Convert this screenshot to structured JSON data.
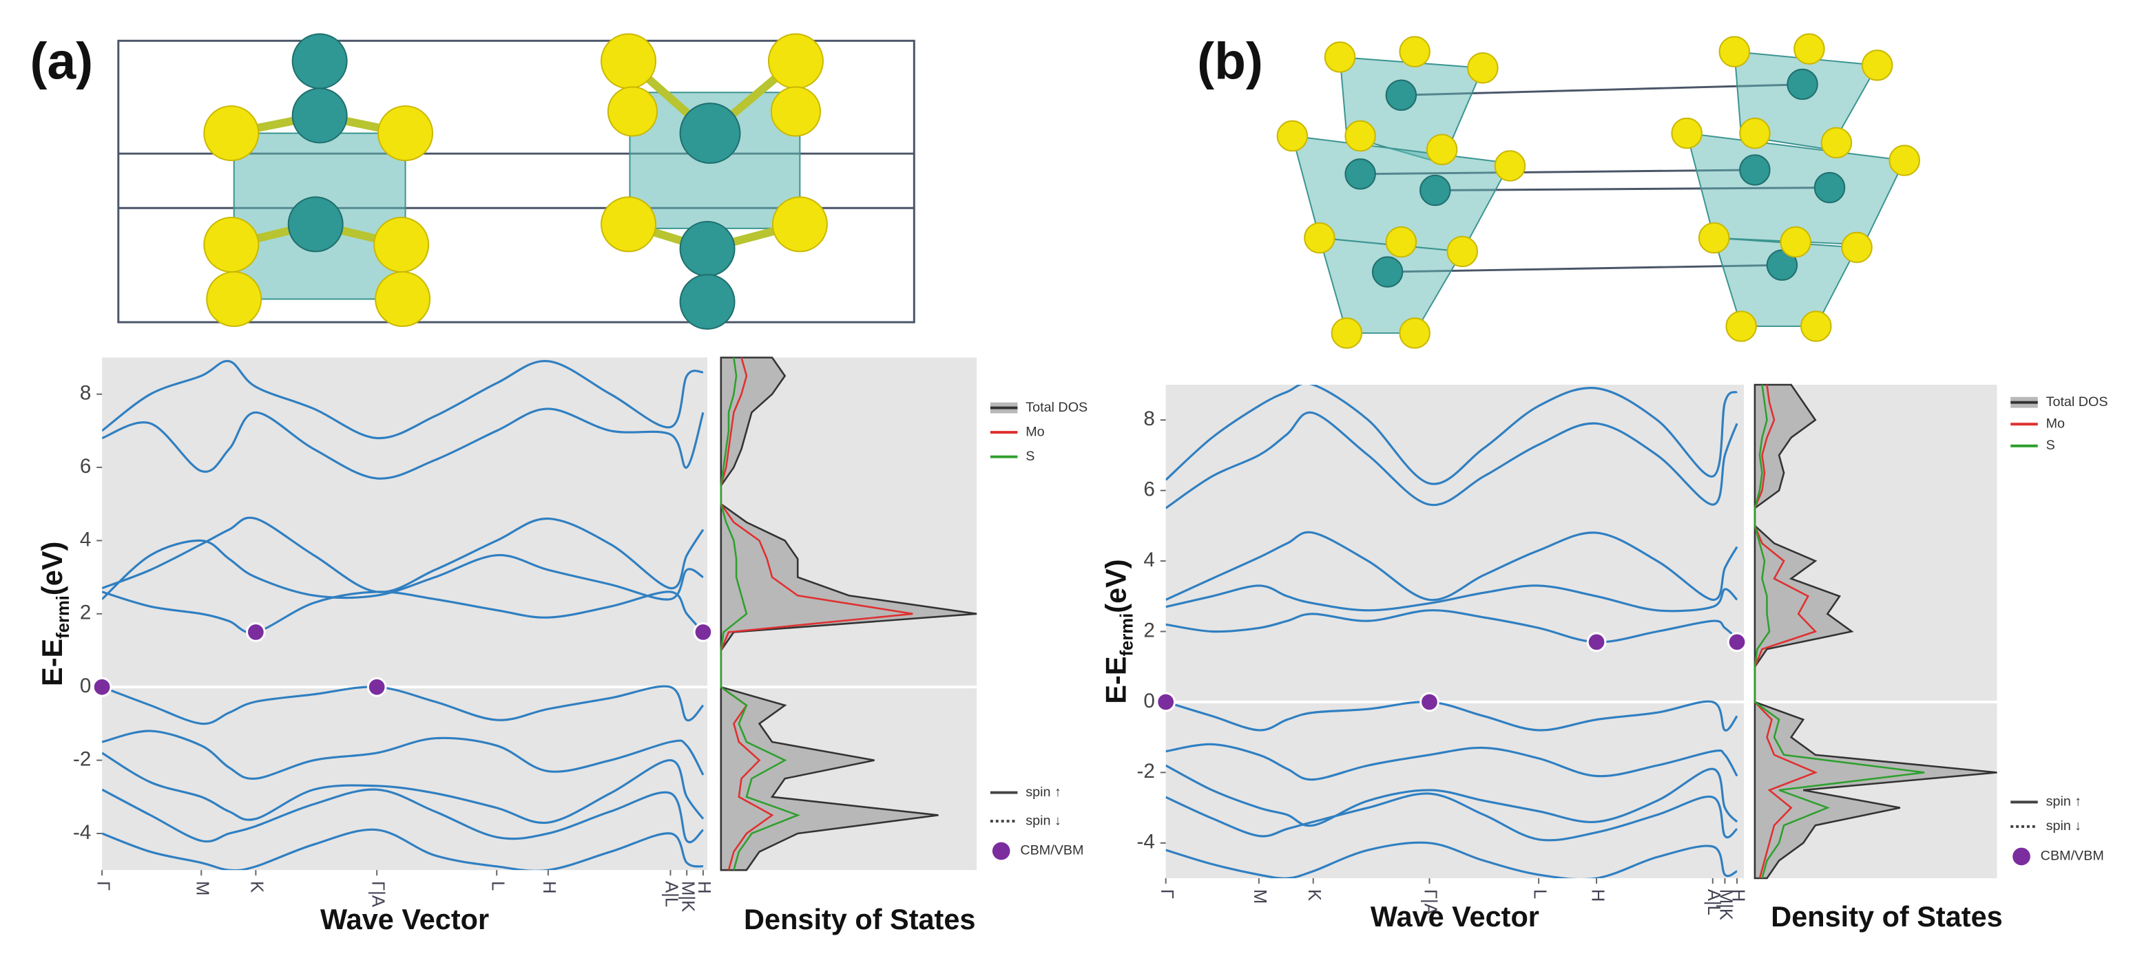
{
  "chart_data": [
    {
      "type": "band",
      "panel_label": "(a)",
      "y_label": "E-E",
      "y_label_sub": "fermi",
      "y_label_end": "(eV)",
      "x_label": "Wave Vector",
      "xlim": [
        0,
        1
      ],
      "ylim": [
        -5,
        9
      ],
      "yticks": [
        -4,
        -2,
        0,
        2,
        4,
        6,
        8
      ],
      "xticks": [
        {
          "value": 0,
          "label": "Γ"
        },
        {
          "value": 0.164,
          "label": "M"
        },
        {
          "value": 0.254,
          "label": "K"
        },
        {
          "value": 0.454,
          "label": "Γ|A"
        },
        {
          "value": 0.652,
          "label": "L"
        },
        {
          "value": 0.737,
          "label": "H"
        },
        {
          "value": 0.939,
          "label": "A|L"
        },
        {
          "value": 0.966,
          "label": "M|K"
        },
        {
          "value": 0.993,
          "label": "H"
        }
      ],
      "band_color": "#2f7fc1",
      "x": [
        0,
        0.08,
        0.164,
        0.21,
        0.254,
        0.35,
        0.454,
        0.55,
        0.652,
        0.737,
        0.84,
        0.939,
        0.966,
        0.993
      ],
      "bands": [
        [
          2.6,
          2.2,
          2.0,
          1.8,
          1.5,
          2.3,
          2.6,
          2.4,
          2.1,
          1.9,
          2.2,
          2.6,
          2.0,
          1.5
        ],
        [
          2.7,
          3.2,
          3.9,
          4.3,
          4.6,
          3.6,
          2.6,
          3.2,
          4.0,
          4.6,
          3.9,
          2.7,
          3.6,
          4.3
        ],
        [
          2.4,
          3.6,
          4.0,
          3.5,
          3.0,
          2.5,
          2.5,
          3.0,
          3.6,
          3.2,
          2.8,
          2.4,
          3.2,
          3.0
        ],
        [
          6.8,
          7.2,
          5.9,
          6.5,
          7.5,
          6.5,
          5.7,
          6.2,
          7.0,
          7.6,
          7.0,
          6.9,
          6.0,
          7.5
        ],
        [
          7.0,
          8.0,
          8.5,
          8.9,
          8.2,
          7.6,
          6.8,
          7.4,
          8.3,
          8.9,
          8.0,
          7.1,
          8.5,
          8.6
        ],
        [
          0,
          -0.5,
          -1.0,
          -0.7,
          -0.4,
          -0.2,
          0,
          -0.4,
          -0.9,
          -0.6,
          -0.3,
          0,
          -0.9,
          -0.5
        ],
        [
          -1.5,
          -1.2,
          -1.6,
          -2.2,
          -2.5,
          -2.0,
          -1.8,
          -1.4,
          -1.6,
          -2.3,
          -2.0,
          -1.5,
          -1.6,
          -2.4
        ],
        [
          -1.8,
          -2.6,
          -3.0,
          -3.4,
          -3.6,
          -2.8,
          -2.7,
          -2.9,
          -3.3,
          -3.7,
          -2.9,
          -2.0,
          -3.0,
          -3.6
        ],
        [
          -2.8,
          -3.5,
          -4.2,
          -4.0,
          -3.8,
          -3.2,
          -2.8,
          -3.4,
          -4.1,
          -4.0,
          -3.4,
          -2.9,
          -4.2,
          -3.9
        ],
        [
          -4.0,
          -4.5,
          -4.8,
          -5.0,
          -4.9,
          -4.3,
          -3.9,
          -4.6,
          -4.9,
          -5.0,
          -4.5,
          -4.0,
          -4.8,
          -4.9
        ]
      ],
      "extrema": {
        "name": "CBM/VBM",
        "color": "#7b2d9e",
        "x": [
          0,
          0.254,
          0.454,
          0.993
        ],
        "values": [
          0,
          1.5,
          0,
          1.5
        ]
      },
      "spin_legend": [
        "spin ↑",
        "spin ↓"
      ],
      "dos": {
        "x_label": "Density of States",
        "xlim": [
          0,
          1
        ],
        "energies": [
          -5,
          -4.5,
          -4,
          -3.5,
          -3,
          -2.5,
          -2,
          -1.5,
          -1,
          -0.5,
          0,
          0.5,
          1,
          1.5,
          2,
          2.5,
          3,
          3.5,
          4,
          4.5,
          5,
          5.5,
          6,
          6.5,
          7,
          7.5,
          8,
          8.5,
          9
        ],
        "series": [
          {
            "name": "Total DOS",
            "color": "#333333",
            "values": [
              0.1,
              0.15,
              0.3,
              0.85,
              0.2,
              0.25,
              0.6,
              0.2,
              0.15,
              0.25,
              0,
              0,
              0,
              0.05,
              1.0,
              0.5,
              0.3,
              0.3,
              0.25,
              0.1,
              0,
              0,
              0.05,
              0.08,
              0.1,
              0.12,
              0.2,
              0.25,
              0.2
            ]
          },
          {
            "name": "Mo",
            "color": "#e03030",
            "values": [
              0.03,
              0.05,
              0.1,
              0.2,
              0.07,
              0.08,
              0.15,
              0.07,
              0.05,
              0.1,
              0,
              0,
              0,
              0.03,
              0.75,
              0.3,
              0.2,
              0.18,
              0.15,
              0.05,
              0,
              0,
              0.02,
              0.03,
              0.04,
              0.05,
              0.08,
              0.1,
              0.08
            ]
          },
          {
            "name": "S",
            "color": "#2ea02e",
            "values": [
              0.05,
              0.07,
              0.12,
              0.3,
              0.1,
              0.12,
              0.25,
              0.1,
              0.07,
              0.1,
              0,
              0,
              0,
              0.01,
              0.1,
              0.08,
              0.06,
              0.06,
              0.05,
              0.02,
              0,
              0,
              0.01,
              0.02,
              0.03,
              0.03,
              0.05,
              0.06,
              0.05
            ]
          }
        ]
      }
    },
    {
      "type": "band",
      "panel_label": "(b)",
      "y_label": "E-E",
      "y_label_sub": "fermi",
      "y_label_end": "(eV)",
      "x_label": "Wave Vector",
      "xlim": [
        0,
        1
      ],
      "ylim": [
        -5,
        9
      ],
      "yticks": [
        -4,
        -2,
        0,
        2,
        4,
        6,
        8
      ],
      "xticks": [
        {
          "value": 0,
          "label": "Γ"
        },
        {
          "value": 0.161,
          "label": "M"
        },
        {
          "value": 0.255,
          "label": "K"
        },
        {
          "value": 0.456,
          "label": "Γ|A"
        },
        {
          "value": 0.645,
          "label": "L"
        },
        {
          "value": 0.745,
          "label": "H"
        },
        {
          "value": 0.946,
          "label": "A|L"
        },
        {
          "value": 0.967,
          "label": "M|K"
        },
        {
          "value": 0.988,
          "label": "H"
        }
      ],
      "band_color": "#2f7fc1",
      "x": [
        0,
        0.08,
        0.161,
        0.21,
        0.255,
        0.35,
        0.456,
        0.55,
        0.645,
        0.745,
        0.85,
        0.946,
        0.967,
        0.988
      ],
      "bands": [
        [
          2.2,
          2.0,
          2.1,
          2.3,
          2.5,
          2.3,
          2.6,
          2.4,
          2.1,
          1.7,
          2.0,
          2.3,
          2.1,
          1.8
        ],
        [
          2.9,
          3.5,
          4.1,
          4.5,
          4.8,
          4.0,
          2.9,
          3.6,
          4.3,
          4.8,
          4.0,
          2.9,
          3.8,
          4.4
        ],
        [
          2.7,
          3.0,
          3.3,
          3.0,
          2.8,
          2.6,
          2.8,
          3.1,
          3.3,
          3.0,
          2.6,
          2.7,
          3.2,
          2.9
        ],
        [
          5.5,
          6.4,
          7.0,
          7.6,
          8.2,
          7.0,
          5.6,
          6.4,
          7.3,
          7.9,
          7.0,
          5.6,
          7.0,
          7.9
        ],
        [
          6.3,
          7.5,
          8.4,
          8.8,
          9.0,
          8.0,
          6.2,
          7.2,
          8.4,
          8.9,
          8.0,
          6.4,
          8.5,
          8.8
        ],
        [
          0,
          -0.4,
          -0.8,
          -0.5,
          -0.3,
          -0.2,
          0,
          -0.4,
          -0.8,
          -0.5,
          -0.3,
          0,
          -0.8,
          -0.4
        ],
        [
          -1.4,
          -1.2,
          -1.5,
          -1.9,
          -2.2,
          -1.8,
          -1.5,
          -1.3,
          -1.6,
          -2.1,
          -1.8,
          -1.4,
          -1.5,
          -2.1
        ],
        [
          -1.8,
          -2.5,
          -3.0,
          -3.2,
          -3.5,
          -2.8,
          -2.5,
          -2.8,
          -3.1,
          -3.4,
          -2.8,
          -1.9,
          -3.0,
          -3.4
        ],
        [
          -2.7,
          -3.3,
          -3.8,
          -3.6,
          -3.4,
          -3.0,
          -2.6,
          -3.2,
          -3.9,
          -3.7,
          -3.2,
          -2.7,
          -3.8,
          -3.6
        ],
        [
          -4.2,
          -4.6,
          -4.9,
          -5.0,
          -4.8,
          -4.2,
          -4.0,
          -4.5,
          -4.9,
          -5.0,
          -4.4,
          -4.1,
          -4.9,
          -4.8
        ]
      ],
      "extrema": {
        "name": "CBM/VBM",
        "color": "#7b2d9e",
        "x": [
          0,
          0.456,
          0.745,
          0.988
        ],
        "values": [
          0,
          0,
          1.7,
          1.7
        ]
      },
      "spin_legend": [
        "spin ↑",
        "spin ↓"
      ],
      "dos": {
        "x_label": "Density of States",
        "xlim": [
          0,
          1
        ],
        "energies": [
          -5,
          -4.5,
          -4,
          -3.5,
          -3,
          -2.5,
          -2,
          -1.5,
          -1,
          -0.5,
          0,
          0.5,
          1,
          1.5,
          2,
          2.5,
          3,
          3.5,
          4,
          4.5,
          5,
          5.5,
          6,
          6.5,
          7,
          7.5,
          8,
          8.5,
          9
        ],
        "series": [
          {
            "name": "Total DOS",
            "color": "#333333",
            "values": [
              0.05,
              0.1,
              0.2,
              0.25,
              0.6,
              0.2,
              1.0,
              0.25,
              0.15,
              0.2,
              0,
              0,
              0,
              0.05,
              0.4,
              0.3,
              0.35,
              0.15,
              0.25,
              0.08,
              0,
              0,
              0.1,
              0.12,
              0.1,
              0.15,
              0.25,
              0.2,
              0.15
            ]
          },
          {
            "name": "Mo",
            "color": "#e03030",
            "values": [
              0.02,
              0.04,
              0.06,
              0.08,
              0.15,
              0.06,
              0.25,
              0.08,
              0.05,
              0.07,
              0,
              0,
              0,
              0.03,
              0.25,
              0.18,
              0.22,
              0.08,
              0.12,
              0.03,
              0,
              0,
              0.03,
              0.04,
              0.03,
              0.05,
              0.08,
              0.06,
              0.05
            ]
          },
          {
            "name": "S",
            "color": "#2ea02e",
            "values": [
              0.03,
              0.05,
              0.1,
              0.12,
              0.3,
              0.1,
              0.7,
              0.12,
              0.08,
              0.1,
              0,
              0,
              0,
              0.01,
              0.06,
              0.05,
              0.05,
              0.03,
              0.04,
              0.02,
              0,
              0,
              0.02,
              0.03,
              0.02,
              0.03,
              0.05,
              0.04,
              0.03
            ]
          }
        ]
      }
    }
  ]
}
